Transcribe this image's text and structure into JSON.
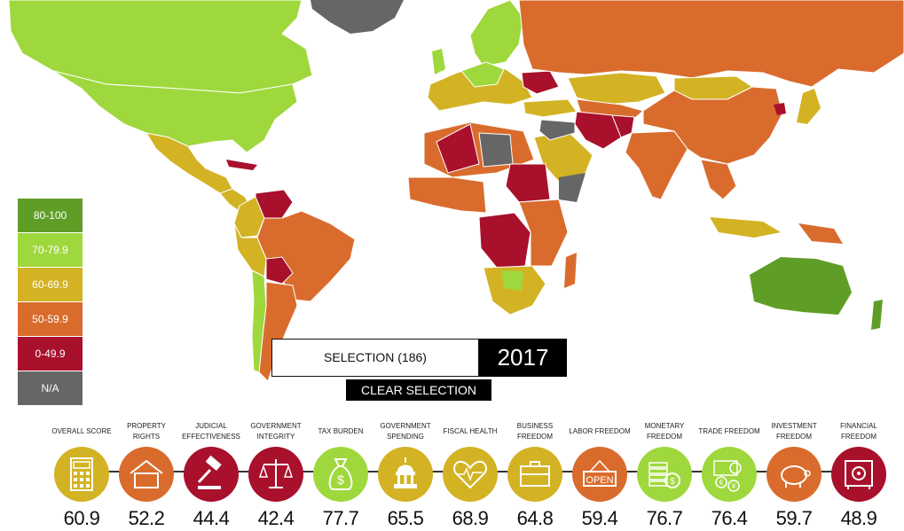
{
  "legend": [
    {
      "label": "80-100",
      "color": "#5f9e26"
    },
    {
      "label": "70-79.9",
      "color": "#9fd83c"
    },
    {
      "label": "60-69.9",
      "color": "#d3b324"
    },
    {
      "label": "50-59.9",
      "color": "#d96c2d"
    },
    {
      "label": "0-49.9",
      "color": "#a8102c"
    },
    {
      "label": "N/A",
      "color": "#666666"
    }
  ],
  "selection": {
    "label": "SELECTION (186)",
    "year": "2017",
    "clear_label": "CLEAR SELECTION"
  },
  "categories": [
    {
      "label": "OVERALL SCORE",
      "score": "60.9",
      "color": "#d3b324",
      "icon": "calculator-icon"
    },
    {
      "label": "PROPERTY RIGHTS",
      "score": "52.2",
      "color": "#d96c2d",
      "icon": "house-icon"
    },
    {
      "label": "JUDICIAL EFFECTIVENESS",
      "score": "44.4",
      "color": "#a8102c",
      "icon": "gavel-icon"
    },
    {
      "label": "GOVERNMENT INTEGRITY",
      "score": "42.4",
      "color": "#a8102c",
      "icon": "scales-icon"
    },
    {
      "label": "TAX BURDEN",
      "score": "77.7",
      "color": "#9fd83c",
      "icon": "money-bag-icon"
    },
    {
      "label": "GOVERNMENT SPENDING",
      "score": "65.5",
      "color": "#d3b324",
      "icon": "capitol-icon"
    },
    {
      "label": "FISCAL HEALTH",
      "score": "68.9",
      "color": "#d3b324",
      "icon": "heartbeat-icon"
    },
    {
      "label": "BUSINESS FREEDOM",
      "score": "64.8",
      "color": "#d3b324",
      "icon": "briefcase-icon"
    },
    {
      "label": "LABOR FREEDOM",
      "score": "59.4",
      "color": "#d96c2d",
      "icon": "open-sign-icon",
      "icon_text": "OPEN"
    },
    {
      "label": "MONETARY FREEDOM",
      "score": "76.7",
      "color": "#9fd83c",
      "icon": "coins-icon"
    },
    {
      "label": "TRADE FREEDOM",
      "score": "76.4",
      "color": "#9fd83c",
      "icon": "currency-icon"
    },
    {
      "label": "INVESTMENT FREEDOM",
      "score": "59.7",
      "color": "#d96c2d",
      "icon": "piggy-bank-icon"
    },
    {
      "label": "FINANCIAL FREEDOM",
      "score": "48.9",
      "color": "#a8102c",
      "icon": "safe-icon"
    }
  ]
}
